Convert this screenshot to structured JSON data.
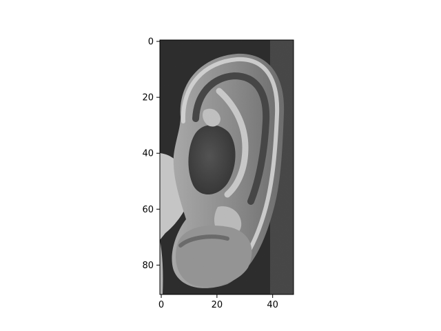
{
  "chart_data": {
    "type": "heatmap",
    "title": "",
    "xlabel": "",
    "ylabel": "",
    "colormap": "gray",
    "image_subject": "grayscale close-up of a human ear",
    "image_shape": [
      91,
      48
    ],
    "xlim": [
      -0.5,
      47.5
    ],
    "ylim": [
      90.5,
      -0.5
    ],
    "y_axis_inverted": true,
    "grid": false,
    "x_ticks": [
      {
        "value": 0,
        "label": "0"
      },
      {
        "value": 20,
        "label": "20"
      },
      {
        "value": 40,
        "label": "40"
      }
    ],
    "y_ticks": [
      {
        "value": 0,
        "label": "0"
      },
      {
        "value": 20,
        "label": "20"
      },
      {
        "value": 40,
        "label": "40"
      },
      {
        "value": 60,
        "label": "60"
      },
      {
        "value": 80,
        "label": "80"
      }
    ]
  }
}
